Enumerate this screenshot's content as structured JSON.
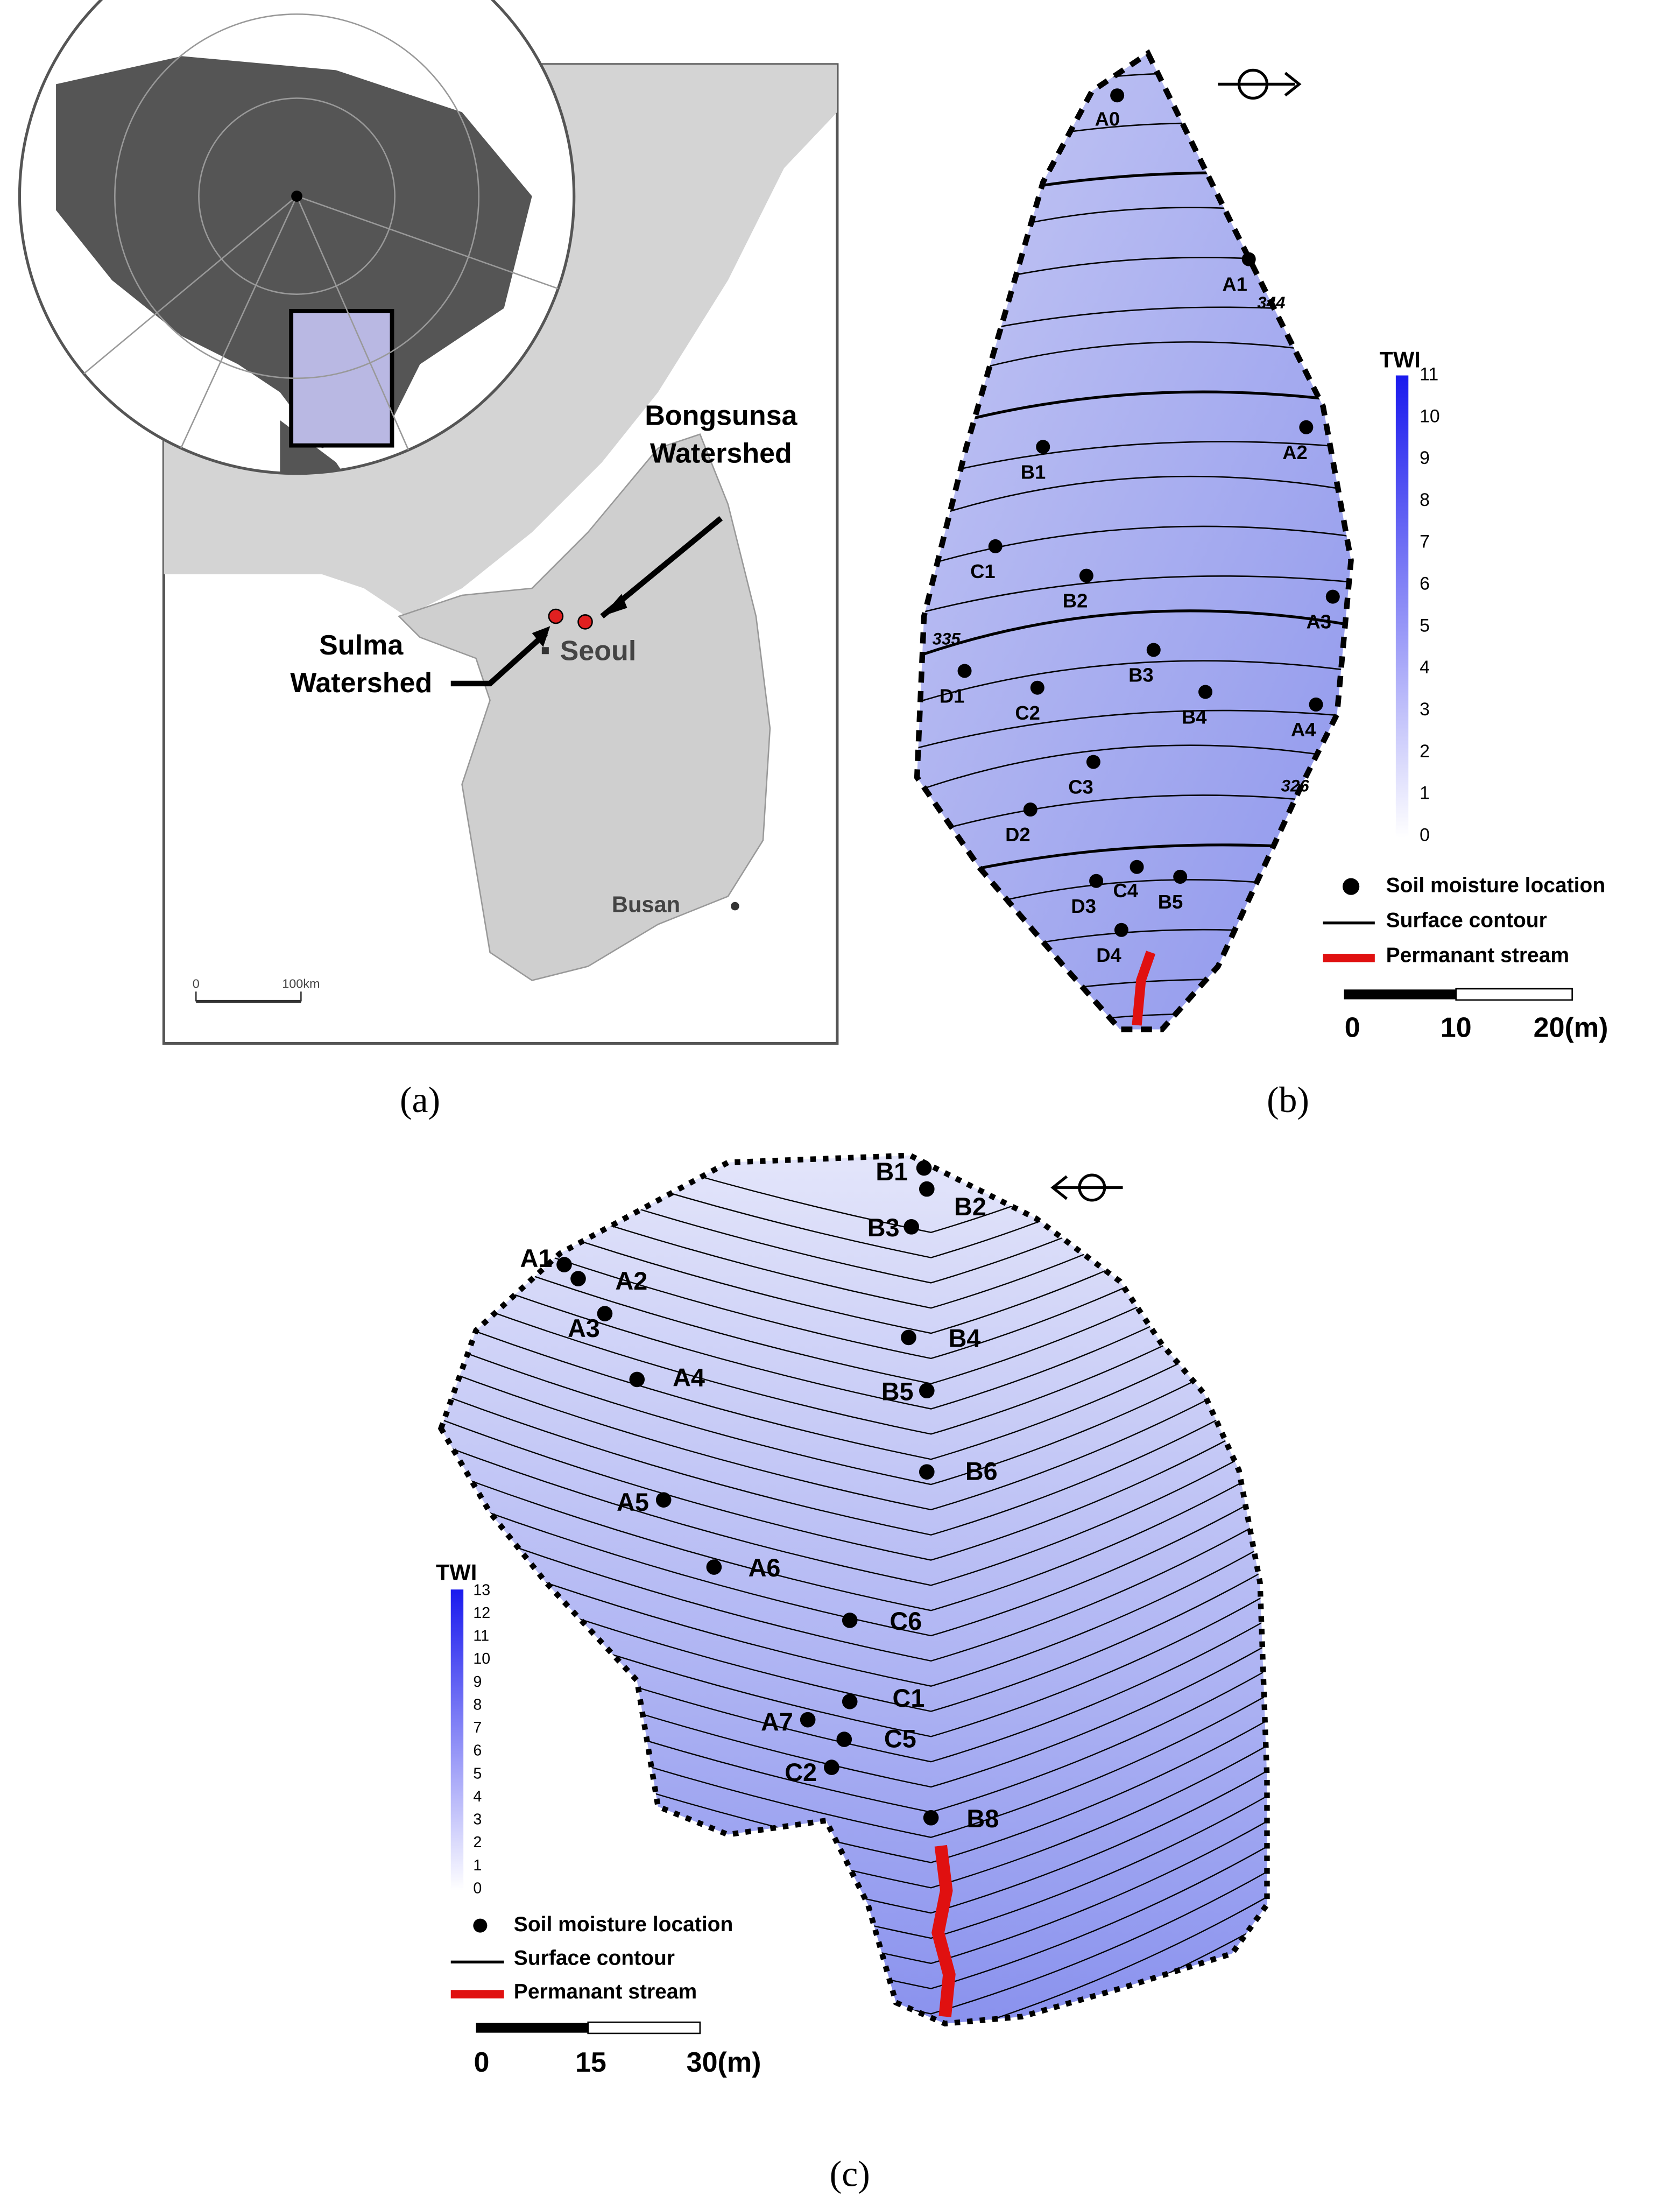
{
  "panel_a": {
    "caption": "(a)",
    "bongsunsa_lines": [
      "Bongsunsa",
      "Watershed"
    ],
    "sulma_lines": [
      "Sulma",
      "Watershed"
    ],
    "seoul": "Seoul",
    "busan": "Busan",
    "scale_labels": [
      "0",
      "100km"
    ]
  },
  "panel_b": {
    "caption": "(b)",
    "points": [
      "A0",
      "A1",
      "A2",
      "A3",
      "A4",
      "B1",
      "B2",
      "B3",
      "B4",
      "B5",
      "C1",
      "C2",
      "C3",
      "C4",
      "D1",
      "D2",
      "D3",
      "D4"
    ],
    "contour_labels": [
      "344",
      "335",
      "326"
    ],
    "twi_title": "TWI",
    "twi_ticks": [
      0,
      1,
      2,
      3,
      4,
      5,
      6,
      7,
      8,
      9,
      10,
      11
    ],
    "legend": [
      "Soil moisture location",
      "Surface contour",
      "Permanant stream"
    ],
    "scale_labels": [
      "0",
      "10",
      "20(m)"
    ]
  },
  "panel_c": {
    "caption": "(c)",
    "points": [
      "B1",
      "B2",
      "B3",
      "A1",
      "A2",
      "A3",
      "A4",
      "B4",
      "B5",
      "B6",
      "A5",
      "A6",
      "C6",
      "C1",
      "A7",
      "C5",
      "C2",
      "B8"
    ],
    "twi_title": "TWI",
    "twi_ticks": [
      0,
      1,
      2,
      3,
      4,
      5,
      6,
      7,
      8,
      9,
      10,
      11,
      12,
      13
    ],
    "legend": [
      "Soil moisture location",
      "Surface contour",
      "Permanant stream"
    ],
    "scale_labels": [
      "0",
      "15",
      "30(m)"
    ]
  }
}
